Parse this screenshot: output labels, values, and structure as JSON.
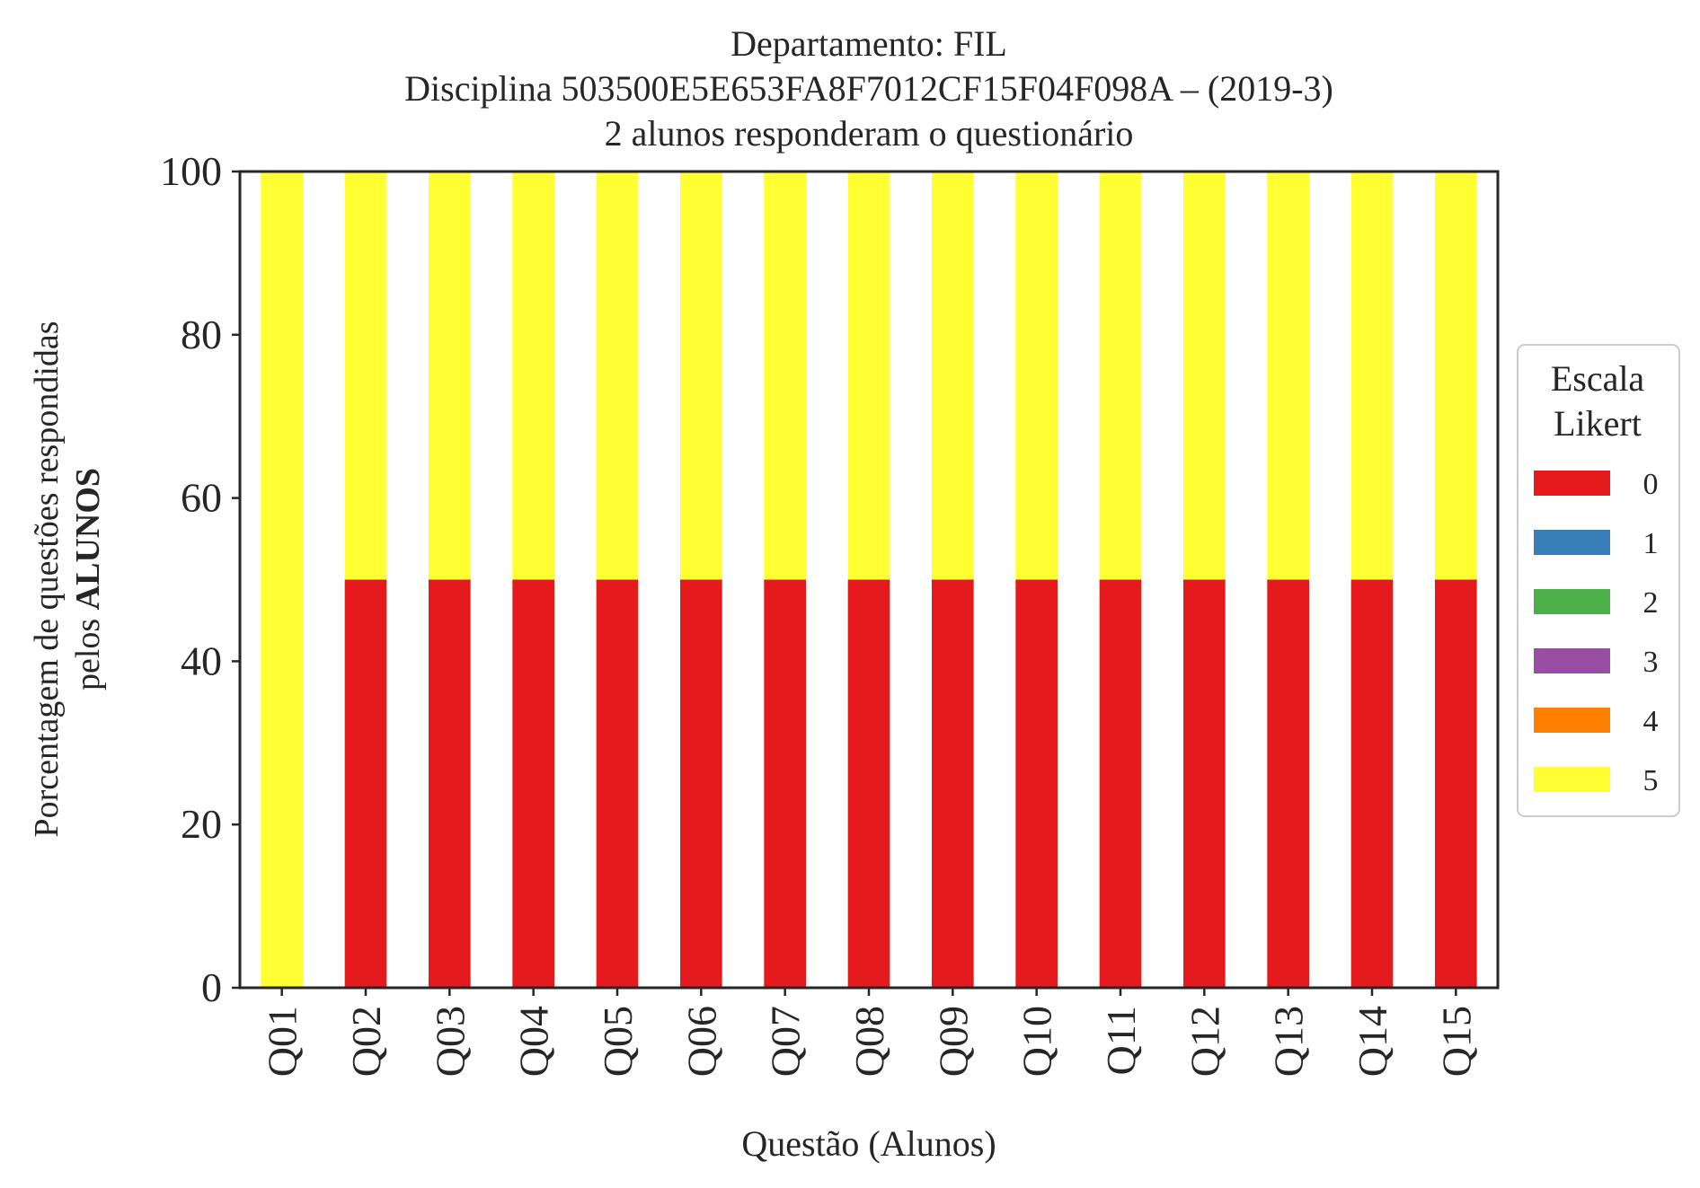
{
  "chart_data": {
    "type": "bar",
    "stacked": true,
    "title_lines": [
      "Departamento: FIL",
      "Disciplina 503500E5E653FA8F7012CF15F04F098A – (2019-3)",
      "2 alunos responderam o questionário"
    ],
    "xlabel": "Questão (Alunos)",
    "ylabel_line1": "Porcentagem de questões respondidas",
    "ylabel_line2_prefix": "pelos ",
    "ylabel_line2_bold": "ALUNOS",
    "ylim": [
      0,
      100
    ],
    "yticks": [
      "0",
      "20",
      "40",
      "60",
      "80",
      "100"
    ],
    "grid": false,
    "categories": [
      "Q01",
      "Q02",
      "Q03",
      "Q04",
      "Q05",
      "Q06",
      "Q07",
      "Q08",
      "Q09",
      "Q10",
      "Q11",
      "Q12",
      "Q13",
      "Q14",
      "Q15"
    ],
    "series": [
      {
        "name": "0",
        "color": "#e41a1c",
        "values": [
          0,
          50,
          50,
          50,
          50,
          50,
          50,
          50,
          50,
          50,
          50,
          50,
          50,
          50,
          50
        ]
      },
      {
        "name": "1",
        "color": "#377eb8",
        "values": [
          0,
          0,
          0,
          0,
          0,
          0,
          0,
          0,
          0,
          0,
          0,
          0,
          0,
          0,
          0
        ]
      },
      {
        "name": "2",
        "color": "#4daf4a",
        "values": [
          0,
          0,
          0,
          0,
          0,
          0,
          0,
          0,
          0,
          0,
          0,
          0,
          0,
          0,
          0
        ]
      },
      {
        "name": "3",
        "color": "#984ea3",
        "values": [
          0,
          0,
          0,
          0,
          0,
          0,
          0,
          0,
          0,
          0,
          0,
          0,
          0,
          0,
          0
        ]
      },
      {
        "name": "4",
        "color": "#ff7f00",
        "values": [
          0,
          0,
          0,
          0,
          0,
          0,
          0,
          0,
          0,
          0,
          0,
          0,
          0,
          0,
          0
        ]
      },
      {
        "name": "5",
        "color": "#ffff33",
        "values": [
          100,
          50,
          50,
          50,
          50,
          50,
          50,
          50,
          50,
          50,
          50,
          50,
          50,
          50,
          50
        ]
      }
    ],
    "legend": {
      "title_lines": [
        "Escala",
        "Likert"
      ],
      "placement": "right-center"
    }
  }
}
